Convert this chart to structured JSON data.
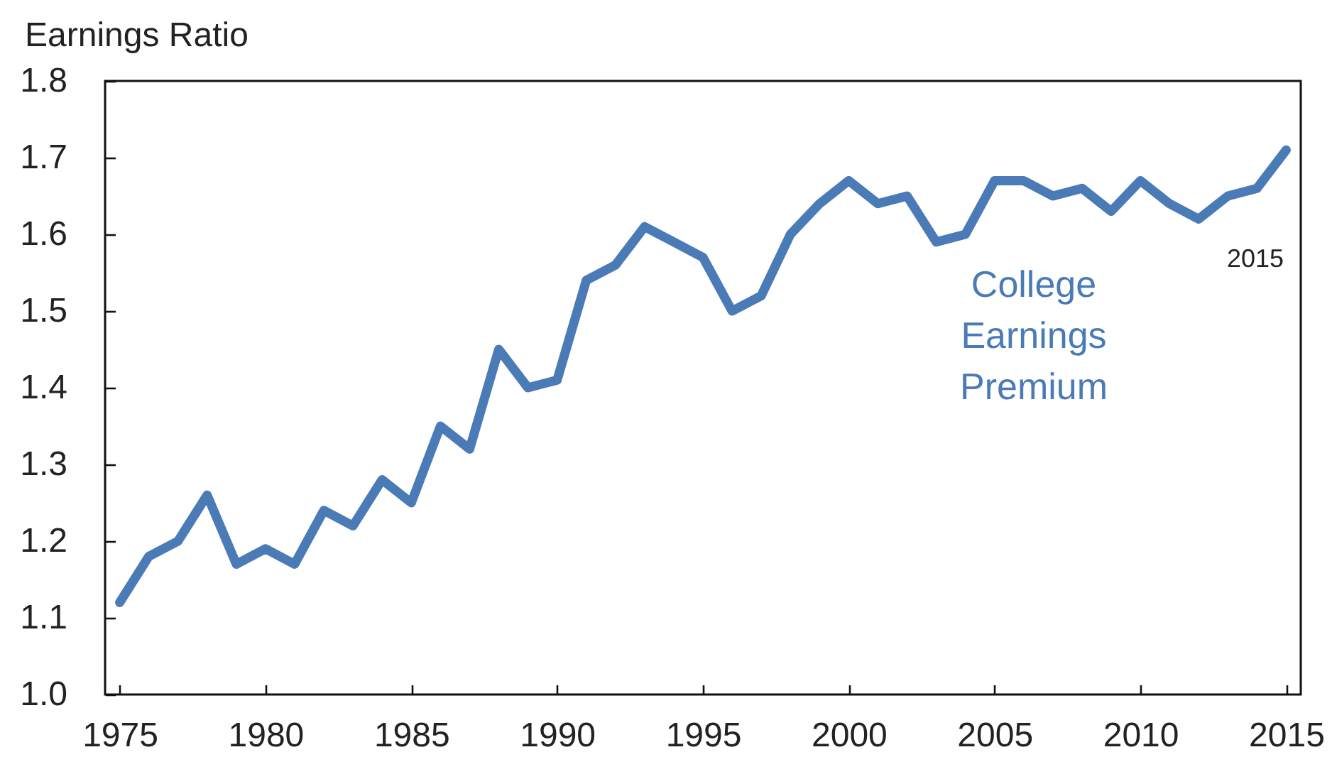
{
  "chart_data": {
    "type": "line",
    "ylabel": "Earnings Ratio",
    "x": [
      1975,
      1976,
      1977,
      1978,
      1979,
      1980,
      1981,
      1982,
      1983,
      1984,
      1985,
      1986,
      1987,
      1988,
      1989,
      1990,
      1991,
      1992,
      1993,
      1994,
      1995,
      1996,
      1997,
      1998,
      1999,
      2000,
      2001,
      2002,
      2003,
      2004,
      2005,
      2006,
      2007,
      2008,
      2009,
      2010,
      2011,
      2012,
      2013,
      2014,
      2015
    ],
    "series": [
      {
        "name": "College Earnings Premium",
        "color": "#4a7bb7",
        "values": [
          1.12,
          1.18,
          1.2,
          1.26,
          1.17,
          1.19,
          1.17,
          1.24,
          1.22,
          1.28,
          1.25,
          1.35,
          1.32,
          1.45,
          1.4,
          1.41,
          1.54,
          1.56,
          1.61,
          1.59,
          1.57,
          1.5,
          1.52,
          1.6,
          1.64,
          1.67,
          1.64,
          1.65,
          1.59,
          1.6,
          1.67,
          1.67,
          1.65,
          1.66,
          1.63,
          1.67,
          1.64,
          1.62,
          1.65,
          1.66,
          1.71
        ]
      }
    ],
    "annotations": [
      "2015"
    ],
    "xlim": [
      1974.5,
      2015.5
    ],
    "xticks": [
      1975,
      1980,
      1985,
      1990,
      1995,
      2000,
      2005,
      2010,
      2015
    ],
    "ylim": [
      1,
      1.8
    ],
    "yticks": [
      {
        "value": 1,
        "label": "1.0"
      },
      1.1,
      1.2,
      1.3,
      1.4,
      1.5,
      1.6,
      1.7,
      1.8
    ],
    "line_style": "solid"
  }
}
